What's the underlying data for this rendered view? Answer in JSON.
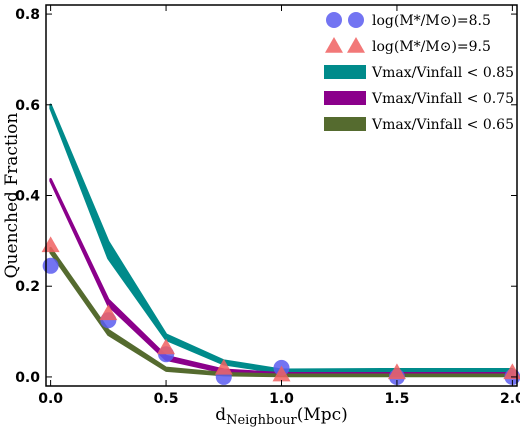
{
  "chart_data": {
    "type": "line",
    "xlabel": {
      "main": "d",
      "sub": "Neighbour",
      "tail": "(Mpc)"
    },
    "ylabel": "Quenched Fraction",
    "xlim": [
      -0.02,
      2.02
    ],
    "ylim": [
      -0.02,
      0.82
    ],
    "x_ticks": [
      0.0,
      0.5,
      1.0,
      1.5,
      2.0
    ],
    "x_tick_labels": [
      "0.0",
      "0.5",
      "1.0",
      "1.5",
      "2.0"
    ],
    "y_ticks": [
      0.0,
      0.2,
      0.4,
      0.6,
      0.8
    ],
    "y_tick_labels": [
      "0.0",
      "0.2",
      "0.4",
      "0.6",
      "0.8"
    ],
    "legend_position": "top-right",
    "bands": [
      {
        "key": "vmax-085",
        "color": "#008b8b",
        "x": [
          0.0,
          0.25,
          0.5,
          0.75,
          1.0,
          1.5,
          2.0
        ],
        "lower": [
          0.592,
          0.262,
          0.082,
          0.028,
          0.009,
          0.01,
          0.009
        ],
        "upper": [
          0.6,
          0.298,
          0.093,
          0.036,
          0.016,
          0.017,
          0.017
        ]
      },
      {
        "key": "vmax-075",
        "color": "#8b008b",
        "x": [
          0.0,
          0.25,
          0.5,
          0.75,
          1.0,
          1.5,
          2.0
        ],
        "lower": [
          0.432,
          0.158,
          0.038,
          0.01,
          0.004,
          0.004,
          0.004
        ],
        "upper": [
          0.436,
          0.17,
          0.046,
          0.016,
          0.008,
          0.008,
          0.008
        ]
      },
      {
        "key": "vmax-065",
        "color": "#556b2f",
        "x": [
          0.0,
          0.25,
          0.5,
          0.75,
          1.0,
          1.5,
          2.0
        ],
        "lower": [
          0.274,
          0.093,
          0.014,
          0.004,
          0.002,
          0.002,
          0.002
        ],
        "upper": [
          0.284,
          0.103,
          0.02,
          0.008,
          0.005,
          0.005,
          0.005
        ]
      }
    ],
    "points": [
      {
        "key": "mass-85",
        "marker": "circle",
        "color": "#5a5cf0",
        "x": [
          0.0,
          0.25,
          0.5,
          0.75,
          1.0,
          1.5,
          2.0
        ],
        "y": [
          0.245,
          0.125,
          0.05,
          0.0,
          0.02,
          0.0,
          0.0
        ]
      },
      {
        "key": "mass-95",
        "marker": "triangle",
        "color": "#f06060",
        "x": [
          0.0,
          0.25,
          0.5,
          0.75,
          1.0,
          1.5,
          2.0
        ],
        "y": [
          0.29,
          0.14,
          0.065,
          0.02,
          0.005,
          0.01,
          0.01
        ]
      }
    ],
    "legend": [
      {
        "key": "mass-85",
        "kind": "circle",
        "color": "#5a5cf0",
        "text": "log(M*/M⊙)=8.5"
      },
      {
        "key": "mass-95",
        "kind": "triangle",
        "color": "#f06060",
        "text": "log(M*/M⊙)=9.5"
      },
      {
        "key": "vmax-085",
        "kind": "patch",
        "color": "#008b8b",
        "text": "Vmax/Vinfall < 0.85"
      },
      {
        "key": "vmax-075",
        "kind": "patch",
        "color": "#8b008b",
        "text": "Vmax/Vinfall < 0.75"
      },
      {
        "key": "vmax-065",
        "kind": "patch",
        "color": "#556b2f",
        "text": "Vmax/Vinfall < 0.65"
      }
    ]
  }
}
